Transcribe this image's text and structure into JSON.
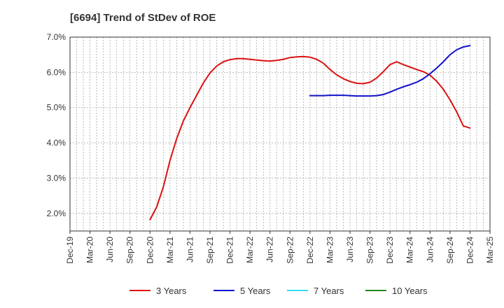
{
  "chart_data": {
    "type": "line",
    "title": "[6694]  Trend of StDev of ROE",
    "xlabel": "",
    "ylabel": "",
    "x_ticks": [
      "Dec-19",
      "Mar-20",
      "Jun-20",
      "Sep-20",
      "Dec-20",
      "Mar-21",
      "Jun-21",
      "Sep-21",
      "Dec-21",
      "Mar-22",
      "Jun-22",
      "Sep-22",
      "Dec-22",
      "Mar-23",
      "Jun-23",
      "Sep-23",
      "Dec-23",
      "Mar-24",
      "Jun-24",
      "Sep-24",
      "Dec-24",
      "Mar-25"
    ],
    "y_ticks": [
      "2.0%",
      "3.0%",
      "4.0%",
      "5.0%",
      "6.0%",
      "7.0%"
    ],
    "ylim": [
      1.5,
      7.0
    ],
    "grid": true,
    "legend_position": "bottom",
    "series": [
      {
        "name": "3 Years",
        "color": "#dd1111",
        "x": [
          "2020-12",
          "2021-01",
          "2021-02",
          "2021-03",
          "2021-04",
          "2021-05",
          "2021-06",
          "2021-07",
          "2021-08",
          "2021-09",
          "2021-10",
          "2021-11",
          "2021-12",
          "2022-01",
          "2022-02",
          "2022-03",
          "2022-04",
          "2022-05",
          "2022-06",
          "2022-07",
          "2022-08",
          "2022-09",
          "2022-10",
          "2022-11",
          "2022-12",
          "2023-01",
          "2023-02",
          "2023-03",
          "2023-04",
          "2023-05",
          "2023-06",
          "2023-07",
          "2023-08",
          "2023-09",
          "2023-10",
          "2023-11",
          "2023-12",
          "2024-01",
          "2024-02",
          "2024-03",
          "2024-04",
          "2024-05",
          "2024-06",
          "2024-07",
          "2024-08",
          "2024-09",
          "2024-10",
          "2024-11",
          "2024-12"
        ],
        "values": [
          1.82,
          2.18,
          2.75,
          3.5,
          4.12,
          4.62,
          5.0,
          5.35,
          5.7,
          5.98,
          6.18,
          6.3,
          6.36,
          6.39,
          6.39,
          6.37,
          6.35,
          6.33,
          6.32,
          6.34,
          6.37,
          6.42,
          6.44,
          6.45,
          6.43,
          6.37,
          6.26,
          6.08,
          5.93,
          5.82,
          5.74,
          5.69,
          5.68,
          5.72,
          5.84,
          6.02,
          6.22,
          6.3,
          6.22,
          6.15,
          6.08,
          6.02,
          5.92,
          5.75,
          5.52,
          5.22,
          4.88,
          4.48,
          4.42
        ]
      },
      {
        "name": "5 Years",
        "color": "#1111cc",
        "x": [
          "2022-12",
          "2023-01",
          "2023-02",
          "2023-03",
          "2023-04",
          "2023-05",
          "2023-06",
          "2023-07",
          "2023-08",
          "2023-09",
          "2023-10",
          "2023-11",
          "2023-12",
          "2024-01",
          "2024-02",
          "2024-03",
          "2024-04",
          "2024-05",
          "2024-06",
          "2024-07",
          "2024-08",
          "2024-09",
          "2024-10",
          "2024-11",
          "2024-12"
        ],
        "values": [
          5.34,
          5.34,
          5.34,
          5.35,
          5.35,
          5.35,
          5.34,
          5.33,
          5.33,
          5.33,
          5.34,
          5.37,
          5.44,
          5.52,
          5.59,
          5.65,
          5.72,
          5.82,
          5.96,
          6.12,
          6.3,
          6.5,
          6.64,
          6.72,
          6.76
        ]
      },
      {
        "name": "7 Years",
        "color": "#33ddee",
        "x": [],
        "values": []
      },
      {
        "name": "10 Years",
        "color": "#228822",
        "x": [],
        "values": []
      }
    ]
  }
}
